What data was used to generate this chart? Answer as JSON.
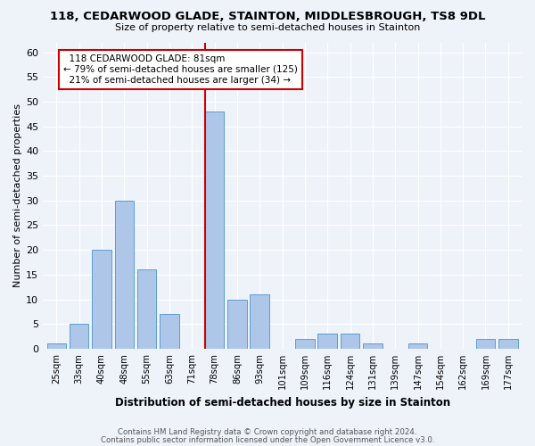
{
  "title": "118, CEDARWOOD GLADE, STAINTON, MIDDLESBROUGH, TS8 9DL",
  "subtitle": "Size of property relative to semi-detached houses in Stainton",
  "xlabel": "Distribution of semi-detached houses by size in Stainton",
  "ylabel": "Number of semi-detached properties",
  "bar_labels": [
    "25sqm",
    "33sqm",
    "40sqm",
    "48sqm",
    "55sqm",
    "63sqm",
    "71sqm",
    "78sqm",
    "86sqm",
    "93sqm",
    "101sqm",
    "109sqm",
    "116sqm",
    "124sqm",
    "131sqm",
    "139sqm",
    "147sqm",
    "154sqm",
    "162sqm",
    "169sqm",
    "177sqm"
  ],
  "bar_values": [
    1,
    5,
    20,
    30,
    16,
    7,
    0,
    48,
    10,
    11,
    0,
    2,
    3,
    3,
    1,
    0,
    1,
    0,
    0,
    2,
    2
  ],
  "bar_color": "#aec6e8",
  "bar_edgecolor": "#5a9fd4",
  "highlight_index": 7,
  "highlight_line_color": "#cc0000",
  "pct_smaller": 79,
  "n_smaller": 125,
  "pct_larger": 21,
  "n_larger": 34,
  "annotation_label": "118 CEDARWOOD GLADE: 81sqm",
  "ylim": [
    0,
    62
  ],
  "yticks": [
    0,
    5,
    10,
    15,
    20,
    25,
    30,
    35,
    40,
    45,
    50,
    55,
    60
  ],
  "footnote1": "Contains HM Land Registry data © Crown copyright and database right 2024.",
  "footnote2": "Contains public sector information licensed under the Open Government Licence v3.0.",
  "bg_color": "#eef2f9",
  "plot_bg_color": "#eef2f9"
}
